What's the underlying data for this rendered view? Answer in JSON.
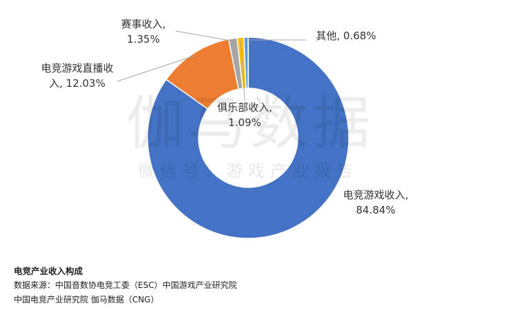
{
  "chart_data": {
    "type": "pie",
    "variant": "donut",
    "categories": [
      "电竞游戏收入",
      "电竞游戏直播收入",
      "赛事收入",
      "俱乐部收入",
      "其他"
    ],
    "values": [
      84.84,
      12.03,
      1.35,
      1.09,
      0.68
    ],
    "labels": [
      [
        "电竞游戏收入,",
        "84.84%"
      ],
      [
        "电竞游戏直播收",
        "入, 12.03%"
      ],
      [
        "赛事收入,",
        "1.35%"
      ],
      [
        "俱乐部收入,",
        "1.09%"
      ],
      [
        "其他, 0.68%"
      ]
    ],
    "colors": [
      "#4472C4",
      "#ED7D31",
      "#A5A5A5",
      "#FFC000",
      "#5B9BD5"
    ],
    "title": ""
  },
  "watermark": {
    "main": "伽马数据",
    "sub": "微信号：游戏产业报告"
  },
  "caption": {
    "title": "电竞产业收入构成",
    "source_line1": "数据来源：中国音数协电竞工委（ESC）中国游戏产业研究院",
    "source_line2": "中国电竞产业研究院  伽马数据（CNG）"
  }
}
